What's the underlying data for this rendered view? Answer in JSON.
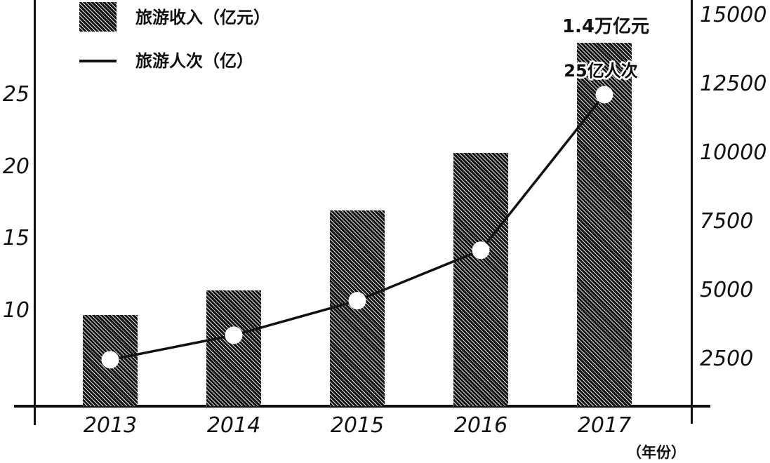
{
  "chart_data": {
    "type": "bar",
    "subtype": "bar-line-combo",
    "categories": [
      "2013",
      "2014",
      "2015",
      "2016",
      "2017"
    ],
    "series": [
      {
        "name": "旅游收入（亿元）",
        "type": "bar",
        "axis": "right",
        "values": [
          4100,
          5000,
          7900,
          10000,
          14000
        ]
      },
      {
        "name": "旅游人次（亿）",
        "type": "line",
        "axis": "left",
        "values": [
          6.6,
          8.3,
          10.7,
          14.2,
          25
        ]
      }
    ],
    "title": "",
    "xlabel": "（年份）",
    "left_axis": {
      "ticks": [
        25,
        20,
        15,
        10
      ],
      "range_shown": [
        10,
        25
      ]
    },
    "right_axis": {
      "ticks": [
        15000,
        12500,
        10000,
        7500,
        5000,
        2500
      ],
      "range_shown": [
        2500,
        15000
      ]
    },
    "annotations": [
      {
        "text": "1.4万亿元",
        "target_series": "旅游收入（亿元）",
        "target_category": "2017"
      },
      {
        "text": "25亿人次",
        "target_series": "旅游人次（亿）",
        "target_category": "2017"
      }
    ],
    "legend": {
      "position": "top-left",
      "entries": [
        {
          "symbol": "hatched-box",
          "label": "旅游收入（亿元）"
        },
        {
          "symbol": "line",
          "label": "旅游人次（亿）"
        }
      ]
    },
    "grid": false,
    "colors": {
      "ink": "#111111",
      "background": "#ffffff",
      "marker_fill": "#ffffff"
    }
  }
}
